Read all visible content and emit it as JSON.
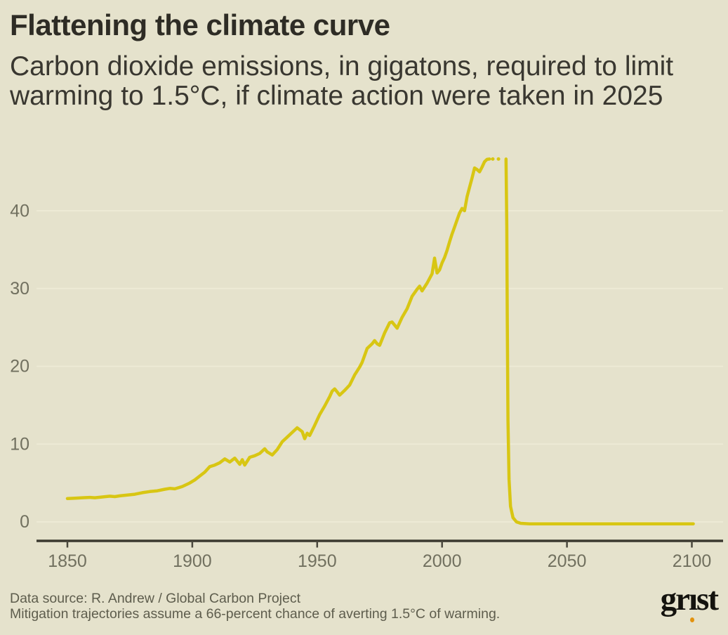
{
  "header": {
    "title": "Flattening the climate curve",
    "subtitle_line1": "Carbon dioxide emissions, in gigatons, required to limit",
    "subtitle_line2": "warming to 1.5°C, if climate action were taken in 2025"
  },
  "footer": {
    "source": "Data source: R. Andrew / Global Carbon Project",
    "note": "Mitigation trajectories assume a 66-percent chance of averting 1.5°C of warming.",
    "logo_pre": "gr",
    "logo_i": "ı",
    "logo_post": "st"
  },
  "colors": {
    "background": "#e5e2cc",
    "line": "#d8c613",
    "logo_dot": "#e2920e"
  },
  "chart_data": {
    "type": "line",
    "title": "Flattening the climate curve",
    "subtitle": "Carbon dioxide emissions, in gigatons, required to limit warming to 1.5°C, if climate action were taken in 2025",
    "xlabel": "",
    "ylabel": "",
    "unit": "gigatons CO2 per year",
    "xlim": [
      1838,
      2112
    ],
    "ylim": [
      -0.5,
      48
    ],
    "x_ticks": [
      "1850",
      "1900",
      "1950",
      "2000",
      "2050",
      "2100"
    ],
    "y_ticks": [
      "0",
      "10",
      "20",
      "30",
      "40"
    ],
    "grid": "horizontal only",
    "legend": "none",
    "series": [
      {
        "name": "historical-emissions",
        "style": "solid",
        "points": [
          [
            1850,
            3.0
          ],
          [
            1853,
            3.05
          ],
          [
            1856,
            3.1
          ],
          [
            1859,
            3.15
          ],
          [
            1861,
            3.1
          ],
          [
            1864,
            3.2
          ],
          [
            1867,
            3.3
          ],
          [
            1869,
            3.25
          ],
          [
            1871,
            3.35
          ],
          [
            1874,
            3.45
          ],
          [
            1877,
            3.55
          ],
          [
            1880,
            3.75
          ],
          [
            1883,
            3.9
          ],
          [
            1886,
            4.0
          ],
          [
            1889,
            4.2
          ],
          [
            1891,
            4.3
          ],
          [
            1893,
            4.25
          ],
          [
            1896,
            4.55
          ],
          [
            1899,
            5.0
          ],
          [
            1901,
            5.4
          ],
          [
            1903,
            5.9
          ],
          [
            1905,
            6.4
          ],
          [
            1907,
            7.1
          ],
          [
            1909,
            7.3
          ],
          [
            1911,
            7.6
          ],
          [
            1913,
            8.1
          ],
          [
            1915,
            7.7
          ],
          [
            1917,
            8.2
          ],
          [
            1919,
            7.4
          ],
          [
            1920,
            8.0
          ],
          [
            1921,
            7.3
          ],
          [
            1923,
            8.3
          ],
          [
            1925,
            8.5
          ],
          [
            1927,
            8.8
          ],
          [
            1929,
            9.4
          ],
          [
            1930,
            9.0
          ],
          [
            1932,
            8.6
          ],
          [
            1934,
            9.3
          ],
          [
            1936,
            10.3
          ],
          [
            1938,
            10.9
          ],
          [
            1940,
            11.5
          ],
          [
            1942,
            12.1
          ],
          [
            1944,
            11.6
          ],
          [
            1945,
            10.7
          ],
          [
            1946,
            11.4
          ],
          [
            1947,
            11.1
          ],
          [
            1949,
            12.4
          ],
          [
            1951,
            13.8
          ],
          [
            1953,
            14.9
          ],
          [
            1955,
            16.1
          ],
          [
            1956,
            16.8
          ],
          [
            1957,
            17.1
          ],
          [
            1958,
            16.7
          ],
          [
            1959,
            16.3
          ],
          [
            1960,
            16.6
          ],
          [
            1961,
            16.9
          ],
          [
            1963,
            17.6
          ],
          [
            1965,
            18.9
          ],
          [
            1967,
            19.9
          ],
          [
            1968,
            20.5
          ],
          [
            1970,
            22.3
          ],
          [
            1972,
            22.9
          ],
          [
            1973,
            23.3
          ],
          [
            1974,
            22.9
          ],
          [
            1975,
            22.7
          ],
          [
            1977,
            24.3
          ],
          [
            1979,
            25.6
          ],
          [
            1980,
            25.7
          ],
          [
            1982,
            24.9
          ],
          [
            1984,
            26.3
          ],
          [
            1986,
            27.4
          ],
          [
            1988,
            29.0
          ],
          [
            1990,
            29.9
          ],
          [
            1991,
            30.3
          ],
          [
            1992,
            29.7
          ],
          [
            1994,
            30.7
          ],
          [
            1996,
            31.9
          ],
          [
            1997,
            33.9
          ],
          [
            1998,
            32.0
          ],
          [
            1999,
            32.4
          ],
          [
            2000,
            33.3
          ],
          [
            2001,
            34.0
          ],
          [
            2002,
            34.9
          ],
          [
            2003,
            36.0
          ],
          [
            2004,
            37.0
          ],
          [
            2005,
            37.9
          ],
          [
            2006,
            38.8
          ],
          [
            2007,
            39.7
          ],
          [
            2008,
            40.3
          ],
          [
            2009,
            40.0
          ],
          [
            2010,
            41.8
          ],
          [
            2011,
            43.0
          ],
          [
            2012,
            44.2
          ],
          [
            2013,
            45.5
          ],
          [
            2014,
            45.3
          ],
          [
            2015,
            45.0
          ],
          [
            2016,
            45.6
          ],
          [
            2017,
            46.3
          ],
          [
            2018,
            46.6
          ],
          [
            2019,
            46.65
          ]
        ]
      },
      {
        "name": "projected-emissions",
        "style": "dotted",
        "points": [
          [
            2020.3,
            46.65
          ],
          [
            2024.8,
            46.65
          ]
        ]
      },
      {
        "name": "mitigation-trajectory",
        "style": "solid",
        "points": [
          [
            2025.6,
            46.65
          ],
          [
            2025.9,
            38
          ],
          [
            2026.1,
            26
          ],
          [
            2026.4,
            13
          ],
          [
            2026.8,
            5.5
          ],
          [
            2027.4,
            2.0
          ],
          [
            2028.4,
            0.55
          ],
          [
            2029.8,
            0.0
          ],
          [
            2031.5,
            -0.18
          ],
          [
            2035,
            -0.25
          ],
          [
            2060,
            -0.25
          ],
          [
            2080,
            -0.25
          ],
          [
            2100.6,
            -0.25
          ]
        ]
      }
    ]
  }
}
